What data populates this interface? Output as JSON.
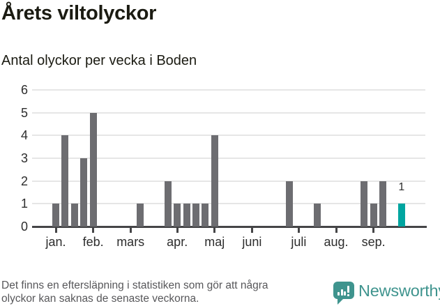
{
  "header": {
    "title": "Årets viltolyckor",
    "subtitle": "Antal olyckor per vecka i Boden"
  },
  "footer": {
    "note_line1": "Det finns en eftersläpning i statistiken som gör att några",
    "note_line2": "olyckor kan saknas de senaste veckorna.",
    "brand": "Newsworthy"
  },
  "icons": {
    "logo_icon": "bar-chart-speech-bubble-icon"
  },
  "colors": {
    "bar": "#6d6d71",
    "highlight": "#00a5a0",
    "axis": "#454547",
    "gridline": "#e6e6e6",
    "tick_label": "#2d2d2d",
    "annotation": "#2d2d2d",
    "note": "#57575a",
    "brand": "#3f948e",
    "title": "#1b1b12"
  },
  "chart_data": {
    "type": "bar",
    "title": "Årets viltolyckor",
    "subtitle": "Antal olyckor per vecka i Boden",
    "x_unit": "week",
    "weeks_shown": 38,
    "xlabel": "",
    "ylabel": "",
    "ylim": [
      0,
      6
    ],
    "yticks": [
      0,
      1,
      2,
      3,
      4,
      5,
      6
    ],
    "grid": true,
    "legend": false,
    "weekly_values": [
      1,
      4,
      1,
      3,
      5,
      0,
      0,
      0,
      0,
      1,
      0,
      0,
      2,
      1,
      1,
      1,
      1,
      4,
      0,
      0,
      0,
      0,
      0,
      0,
      0,
      2,
      0,
      0,
      1,
      0,
      0,
      0,
      0,
      2,
      1,
      2,
      0,
      1
    ],
    "highlight_week": 38,
    "highlight_value_label": "1",
    "month_ticks": [
      {
        "week": 1,
        "label": "jan."
      },
      {
        "week": 5,
        "label": "feb."
      },
      {
        "week": 9,
        "label": "mars"
      },
      {
        "week": 14,
        "label": "apr."
      },
      {
        "week": 18,
        "label": "maj"
      },
      {
        "week": 22,
        "label": "juni"
      },
      {
        "week": 27,
        "label": "juli"
      },
      {
        "week": 31,
        "label": "aug."
      },
      {
        "week": 35,
        "label": "sep."
      }
    ]
  }
}
